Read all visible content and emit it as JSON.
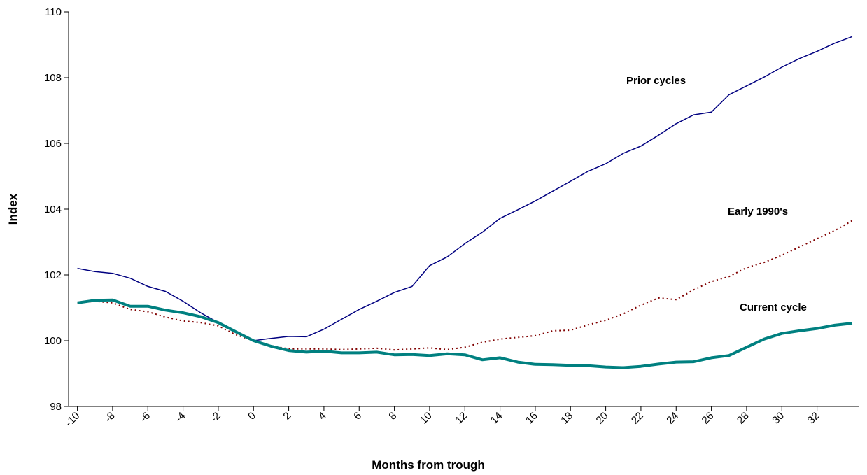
{
  "chart_data": {
    "type": "line",
    "x_label": "Months from trough",
    "y_label": "Index",
    "x": [
      -10,
      -9,
      -8,
      -7,
      -6,
      -5,
      -4,
      -3,
      -2,
      -1,
      0,
      1,
      2,
      3,
      4,
      5,
      6,
      7,
      8,
      9,
      10,
      11,
      12,
      13,
      14,
      15,
      16,
      17,
      18,
      19,
      20,
      21,
      22,
      23,
      24,
      25,
      26,
      27,
      28,
      29,
      30,
      31,
      32,
      33,
      34
    ],
    "series": [
      {
        "name": "Prior cycles",
        "color": "#000080",
        "width": 1.5,
        "dash": "solid",
        "values": [
          102.2,
          102.1,
          102.05,
          101.9,
          101.65,
          101.5,
          101.2,
          100.85,
          100.55,
          100.25,
          100.0,
          100.07,
          100.13,
          100.12,
          100.35,
          100.65,
          100.95,
          101.2,
          101.47,
          101.65,
          102.28,
          102.55,
          102.95,
          103.3,
          103.72,
          103.98,
          104.25,
          104.55,
          104.85,
          105.15,
          105.38,
          105.7,
          105.92,
          106.25,
          106.6,
          106.87,
          106.95,
          107.48,
          107.75,
          108.02,
          108.32,
          108.58,
          108.8,
          109.05,
          109.25
        ]
      },
      {
        "name": "Early 1990's",
        "color": "#800000",
        "width": 2,
        "dash": "dotted",
        "values": [
          101.15,
          101.2,
          101.15,
          100.95,
          100.88,
          100.72,
          100.6,
          100.55,
          100.45,
          100.18,
          100.0,
          99.85,
          99.75,
          99.75,
          99.75,
          99.73,
          99.75,
          99.77,
          99.72,
          99.75,
          99.78,
          99.73,
          99.8,
          99.95,
          100.05,
          100.1,
          100.15,
          100.3,
          100.32,
          100.48,
          100.62,
          100.82,
          101.08,
          101.3,
          101.25,
          101.55,
          101.8,
          101.95,
          102.22,
          102.38,
          102.6,
          102.85,
          103.1,
          103.35,
          103.65
        ]
      },
      {
        "name": "Current cycle",
        "color": "#008080",
        "width": 4,
        "dash": "solid",
        "values": [
          101.15,
          101.23,
          101.24,
          101.05,
          101.05,
          100.93,
          100.85,
          100.73,
          100.55,
          100.27,
          100.0,
          99.83,
          99.7,
          99.65,
          99.68,
          99.63,
          99.63,
          99.65,
          99.57,
          99.58,
          99.55,
          99.6,
          99.57,
          99.42,
          99.48,
          99.35,
          99.28,
          99.27,
          99.25,
          99.24,
          99.2,
          99.18,
          99.22,
          99.29,
          99.35,
          99.36,
          99.48,
          99.55,
          99.8,
          100.05,
          100.22,
          100.3,
          100.37,
          100.47,
          100.53
        ]
      }
    ],
    "xlim": [
      -10.5,
      34.4
    ],
    "xticks": [
      -10,
      -8,
      -6,
      -4,
      -2,
      0,
      2,
      4,
      6,
      8,
      10,
      12,
      14,
      16,
      18,
      20,
      22,
      24,
      26,
      28,
      30,
      32
    ],
    "ylim": [
      98,
      110
    ],
    "yticks": [
      98,
      100,
      102,
      104,
      106,
      108,
      110
    ]
  }
}
